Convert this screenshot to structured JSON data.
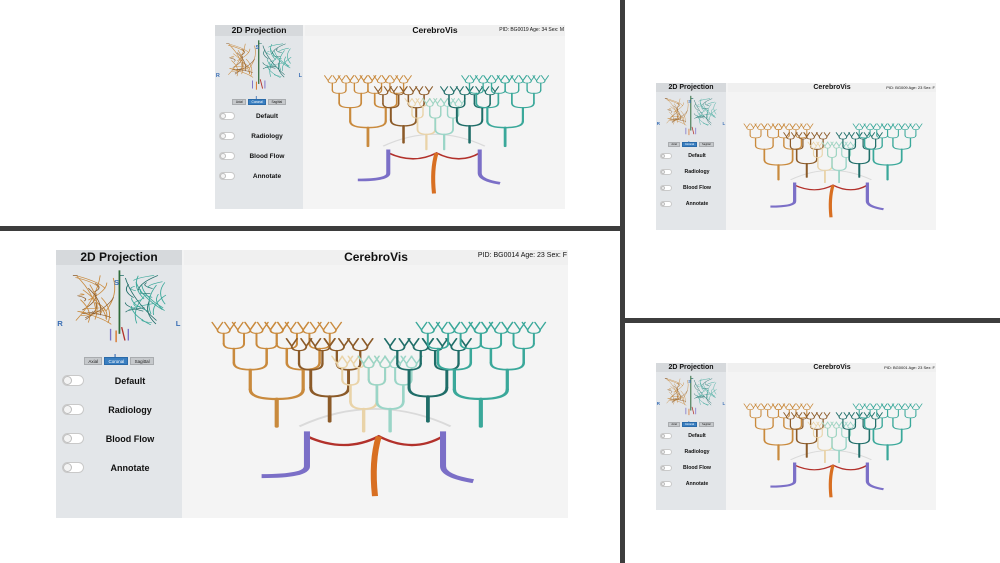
{
  "colors": {
    "orange_light": "#e3b27d",
    "orange": "#c98a3d",
    "brown": "#8b5a28",
    "cream": "#e9d3a8",
    "teal_light": "#9ad5c7",
    "teal": "#3aa89a",
    "teal_dark": "#1f6d68",
    "red": "#b2312b",
    "purple": "#7b6fc7",
    "orange_trunk": "#d86f22",
    "ring": "#dadada"
  },
  "common": {
    "side_title": "2D Projection",
    "app_title": "CerebroVis",
    "view_buttons": [
      "Axial",
      "Coronal",
      "Sagittal"
    ],
    "active_view": "Coronal",
    "toggles": [
      "Default",
      "Radiology",
      "Blood Flow",
      "Annotate"
    ],
    "orient": {
      "right": "R",
      "left": "L",
      "superior": "S",
      "inferior": "I"
    }
  },
  "panels": [
    {
      "id": "top-left",
      "pid": "PID: BG0019 Age: 34 Sex: M"
    },
    {
      "id": "bottom-left",
      "pid": "PID: BG0014 Age: 23 Sex: F"
    },
    {
      "id": "top-right",
      "pid": "PID: BG009 Age: 23 Sex: F"
    },
    {
      "id": "bottom-right",
      "pid": "PID: BG0001 Age: 23 Sex: F"
    }
  ]
}
